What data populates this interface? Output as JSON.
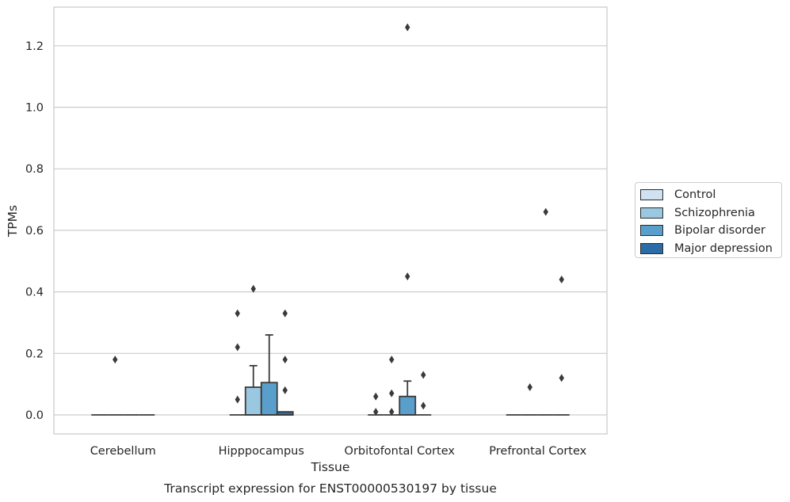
{
  "chart_data": {
    "type": "box",
    "title": "Transcript expression for ENST00000530197 by tissue",
    "xlabel": "Tissue",
    "ylabel": "TPMs",
    "ylim": [
      -0.06,
      1.32
    ],
    "yticks": [
      "0.0",
      "0.2",
      "0.4",
      "0.6",
      "0.8",
      "1.0",
      "1.2"
    ],
    "categories": [
      "Cerebellum",
      "Hipppocampus",
      "Orbitofontal Cortex",
      "Prefrontal Cortex"
    ],
    "grid": "horizontal",
    "legend_position": "right",
    "series": [
      {
        "name": "Control",
        "color": "#d0e1f2",
        "boxes": [
          {
            "category": "Cerebellum",
            "q1": 0,
            "median": 0,
            "q3": 0,
            "whisker_low": 0,
            "whisker_high": 0,
            "outliers": []
          },
          {
            "category": "Hipppocampus",
            "q1": 0,
            "median": 0,
            "q3": 0,
            "whisker_low": 0,
            "whisker_high": 0,
            "outliers": [
              0.33,
              0.22,
              0.05
            ]
          },
          {
            "category": "Orbitofontal Cortex",
            "q1": 0,
            "median": 0,
            "q3": 0,
            "whisker_low": 0,
            "whisker_high": 0,
            "outliers": [
              0.06,
              0.01
            ]
          },
          {
            "category": "Prefrontal Cortex",
            "q1": 0,
            "median": 0,
            "q3": 0,
            "whisker_low": 0,
            "whisker_high": 0,
            "outliers": []
          }
        ]
      },
      {
        "name": "Schizophrenia",
        "color": "#9ac8e0",
        "boxes": [
          {
            "category": "Cerebellum",
            "q1": 0,
            "median": 0,
            "q3": 0,
            "whisker_low": 0,
            "whisker_high": 0,
            "outliers": [
              0.18
            ]
          },
          {
            "category": "Hipppocampus",
            "q1": 0,
            "median": 0,
            "q3": 0.09,
            "whisker_low": 0,
            "whisker_high": 0.16,
            "outliers": [
              0.41
            ]
          },
          {
            "category": "Orbitofontal Cortex",
            "q1": 0,
            "median": 0,
            "q3": 0,
            "whisker_low": 0,
            "whisker_high": 0,
            "outliers": [
              0.18,
              0.07,
              0.01
            ]
          },
          {
            "category": "Prefrontal Cortex",
            "q1": 0,
            "median": 0,
            "q3": 0,
            "whisker_low": 0,
            "whisker_high": 0,
            "outliers": [
              0.09
            ]
          }
        ]
      },
      {
        "name": "Bipolar disorder",
        "color": "#5a9fcc",
        "boxes": [
          {
            "category": "Cerebellum",
            "q1": 0,
            "median": 0,
            "q3": 0,
            "whisker_low": 0,
            "whisker_high": 0,
            "outliers": []
          },
          {
            "category": "Hipppocampus",
            "q1": 0,
            "median": 0,
            "q3": 0.105,
            "whisker_low": 0,
            "whisker_high": 0.26,
            "outliers": []
          },
          {
            "category": "Orbitofontal Cortex",
            "q1": 0,
            "median": 0,
            "q3": 0.06,
            "whisker_low": 0,
            "whisker_high": 0.11,
            "outliers": [
              1.26,
              0.45
            ]
          },
          {
            "category": "Prefrontal Cortex",
            "q1": 0,
            "median": 0,
            "q3": 0,
            "whisker_low": 0,
            "whisker_high": 0,
            "outliers": [
              0.66
            ]
          }
        ]
      },
      {
        "name": "Major depression",
        "color": "#2b6ca6",
        "boxes": [
          {
            "category": "Cerebellum",
            "q1": 0,
            "median": 0,
            "q3": 0,
            "whisker_low": 0,
            "whisker_high": 0,
            "outliers": []
          },
          {
            "category": "Hipppocampus",
            "q1": 0,
            "median": 0,
            "q3": 0.01,
            "whisker_low": 0,
            "whisker_high": 0.01,
            "outliers": [
              0.33,
              0.18,
              0.08
            ]
          },
          {
            "category": "Orbitofontal Cortex",
            "q1": 0,
            "median": 0,
            "q3": 0,
            "whisker_low": 0,
            "whisker_high": 0,
            "outliers": [
              0.13,
              0.03
            ]
          },
          {
            "category": "Prefrontal Cortex",
            "q1": 0,
            "median": 0,
            "q3": 0,
            "whisker_low": 0,
            "whisker_high": 0,
            "outliers": [
              0.44,
              0.12
            ]
          }
        ]
      }
    ]
  }
}
